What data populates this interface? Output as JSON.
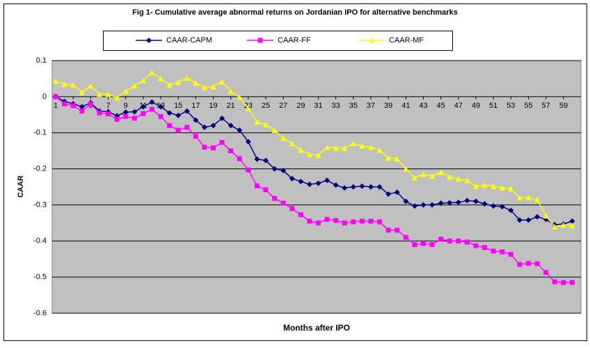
{
  "chart_data": {
    "type": "line",
    "title": "Fig 1- Cumulative average abnormal returns on Jordanian IPO for alternative benchmarks",
    "x_label": "Months after IPO",
    "y_label": "CAAR",
    "x": [
      1,
      2,
      3,
      4,
      5,
      6,
      7,
      8,
      9,
      10,
      11,
      12,
      13,
      14,
      15,
      16,
      17,
      18,
      19,
      20,
      21,
      22,
      23,
      24,
      25,
      26,
      27,
      28,
      29,
      30,
      31,
      32,
      33,
      34,
      35,
      36,
      37,
      38,
      39,
      40,
      41,
      42,
      43,
      44,
      45,
      46,
      47,
      48,
      49,
      50,
      51,
      52,
      53,
      54,
      55,
      56,
      57,
      58,
      59,
      60
    ],
    "xlim": [
      0.6,
      61
    ],
    "xticks": [
      1,
      3,
      5,
      7,
      9,
      11,
      13,
      15,
      17,
      19,
      21,
      23,
      25,
      27,
      29,
      31,
      33,
      35,
      37,
      39,
      41,
      43,
      45,
      47,
      49,
      51,
      53,
      55,
      57,
      59
    ],
    "ylim": [
      -0.6,
      0.1
    ],
    "yticks": [
      0.1,
      0,
      -0.1,
      -0.2,
      -0.3,
      -0.4,
      -0.5,
      -0.6
    ],
    "grid": true,
    "series": [
      {
        "name": "CAAR-CAPM",
        "color": "#000080",
        "marker": "diamond",
        "values": [
          0,
          -0.013,
          -0.02,
          -0.028,
          -0.017,
          -0.04,
          -0.042,
          -0.053,
          -0.043,
          -0.042,
          -0.028,
          -0.015,
          -0.028,
          -0.045,
          -0.052,
          -0.04,
          -0.065,
          -0.085,
          -0.08,
          -0.06,
          -0.08,
          -0.093,
          -0.125,
          -0.173,
          -0.177,
          -0.2,
          -0.205,
          -0.227,
          -0.235,
          -0.243,
          -0.24,
          -0.232,
          -0.245,
          -0.253,
          -0.25,
          -0.248,
          -0.25,
          -0.25,
          -0.27,
          -0.265,
          -0.29,
          -0.303,
          -0.3,
          -0.3,
          -0.295,
          -0.294,
          -0.293,
          -0.288,
          -0.29,
          -0.297,
          -0.303,
          -0.305,
          -0.315,
          -0.342,
          -0.342,
          -0.333,
          -0.34,
          -0.355,
          -0.353,
          -0.345
        ]
      },
      {
        "name": "CAAR-FF",
        "color": "#ff00ff",
        "marker": "square",
        "values": [
          0,
          -0.02,
          -0.025,
          -0.04,
          -0.02,
          -0.045,
          -0.048,
          -0.063,
          -0.055,
          -0.06,
          -0.047,
          -0.035,
          -0.055,
          -0.08,
          -0.093,
          -0.085,
          -0.11,
          -0.14,
          -0.142,
          -0.127,
          -0.15,
          -0.172,
          -0.203,
          -0.247,
          -0.258,
          -0.282,
          -0.295,
          -0.31,
          -0.327,
          -0.345,
          -0.35,
          -0.34,
          -0.343,
          -0.35,
          -0.347,
          -0.345,
          -0.345,
          -0.347,
          -0.37,
          -0.37,
          -0.39,
          -0.41,
          -0.407,
          -0.41,
          -0.395,
          -0.4,
          -0.4,
          -0.403,
          -0.413,
          -0.418,
          -0.428,
          -0.43,
          -0.437,
          -0.465,
          -0.462,
          -0.463,
          -0.487,
          -0.513,
          -0.515,
          -0.515
        ]
      },
      {
        "name": "CAAR-MF",
        "color": "#ffff00",
        "marker": "triangle",
        "values": [
          0.043,
          0.035,
          0.033,
          0.012,
          0.03,
          0.007,
          0.007,
          -0.003,
          0.015,
          0.03,
          0.045,
          0.067,
          0.05,
          0.032,
          0.04,
          0.052,
          0.038,
          0.026,
          0.028,
          0.042,
          0.015,
          -0.002,
          -0.033,
          -0.07,
          -0.077,
          -0.093,
          -0.115,
          -0.13,
          -0.148,
          -0.16,
          -0.162,
          -0.14,
          -0.142,
          -0.143,
          -0.13,
          -0.137,
          -0.14,
          -0.148,
          -0.17,
          -0.172,
          -0.2,
          -0.225,
          -0.215,
          -0.22,
          -0.21,
          -0.222,
          -0.228,
          -0.232,
          -0.248,
          -0.245,
          -0.248,
          -0.253,
          -0.255,
          -0.28,
          -0.28,
          -0.285,
          -0.33,
          -0.36,
          -0.355,
          -0.357
        ]
      }
    ]
  }
}
